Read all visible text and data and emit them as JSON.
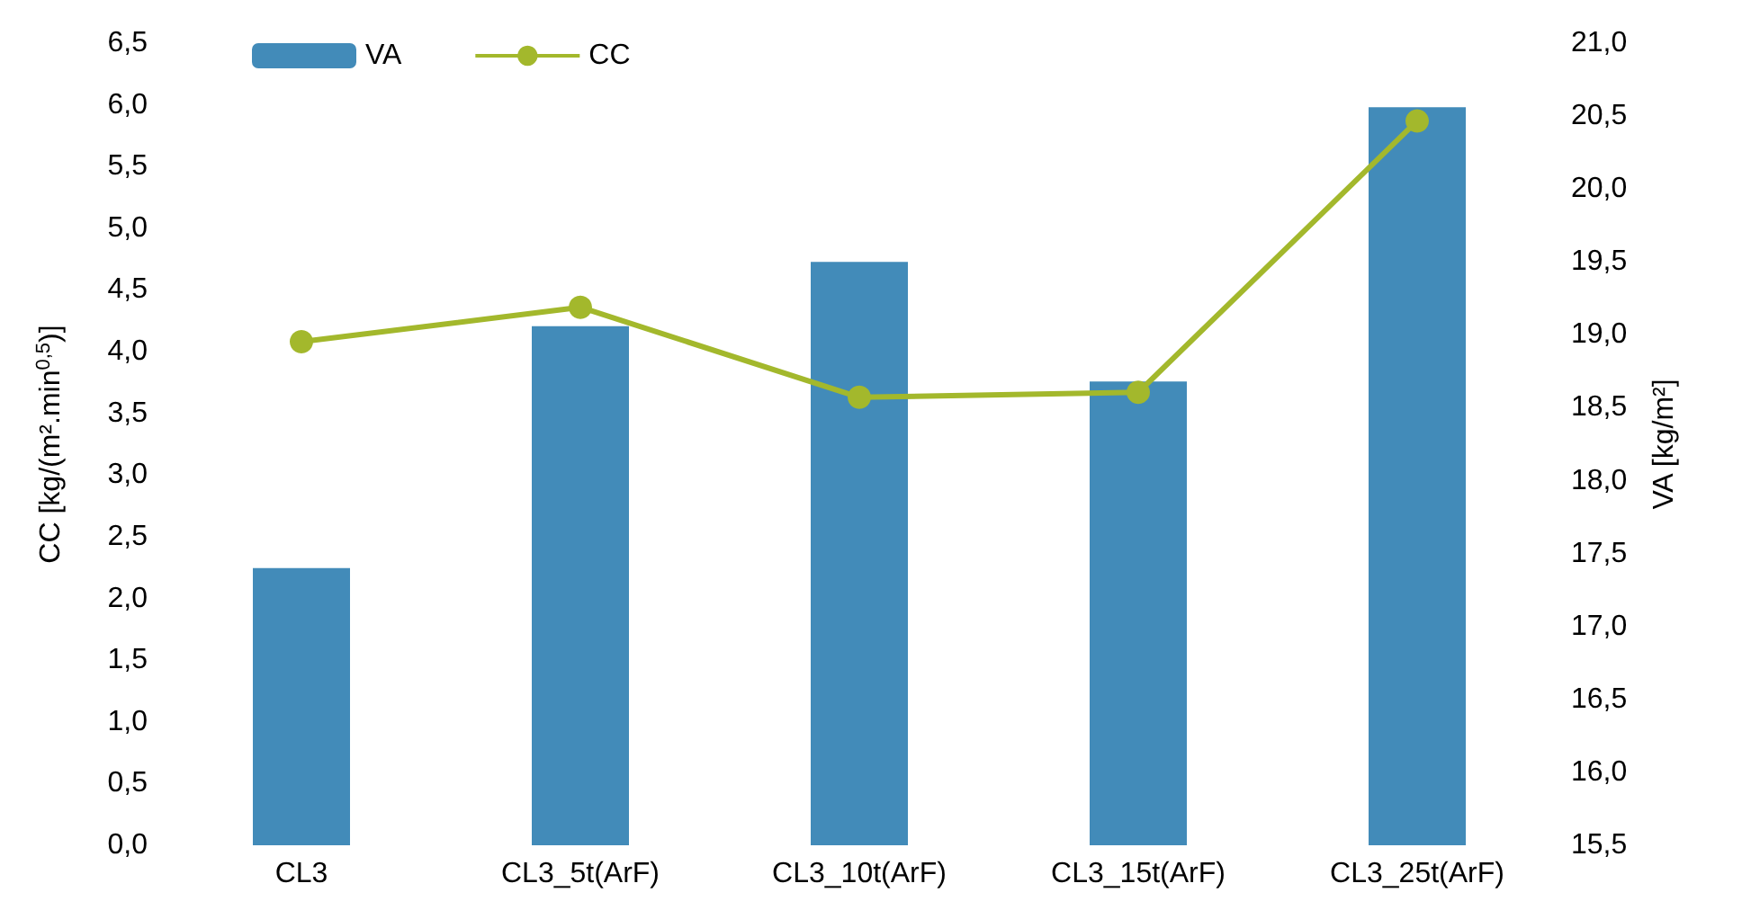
{
  "chart_data": {
    "type": "bar",
    "categories": [
      "CL3",
      "CL3_5t(ArF)",
      "CL3_10t(ArF)",
      "CL3_15t(ArF)",
      "CL3_25t(ArF)"
    ],
    "series": [
      {
        "name": "VA",
        "axis": "y2",
        "color": "#428bb9",
        "values": [
          17.4,
          19.06,
          19.5,
          18.68,
          20.56
        ]
      },
      {
        "name": "CC",
        "type": "line",
        "color": "#a3b82c",
        "values": [
          4.08,
          4.36,
          3.63,
          3.67,
          5.87
        ]
      }
    ],
    "ylabel": "CC [kg/(m².min$^{0,5}$)]",
    "y2label": "VA [kg/m²]",
    "ylim": [
      0,
      6.5
    ],
    "yticks": [
      {
        "value": 0,
        "label": "0,0"
      },
      {
        "value": 0.5,
        "label": "0,5"
      },
      {
        "value": 1,
        "label": "1,0"
      },
      {
        "value": 1.5,
        "label": "1,5"
      },
      {
        "value": 2,
        "label": "2,0"
      },
      {
        "value": 2.5,
        "label": "2,5"
      },
      {
        "value": 3,
        "label": "3,0"
      },
      {
        "value": 3.5,
        "label": "3,5"
      },
      {
        "value": 4,
        "label": "4,0"
      },
      {
        "value": 4.5,
        "label": "4,5"
      },
      {
        "value": 5,
        "label": "5,0"
      },
      {
        "value": 5.5,
        "label": "5,5"
      },
      {
        "value": 6,
        "label": "6,0"
      },
      {
        "value": 6.5,
        "label": "6,5"
      }
    ],
    "y2lim": [
      15.5,
      21
    ],
    "y2ticks": [
      {
        "value": 15.5,
        "label": "15,5"
      },
      {
        "value": 16,
        "label": "16,0"
      },
      {
        "value": 16.5,
        "label": "16,5"
      },
      {
        "value": 17,
        "label": "17,0"
      },
      {
        "value": 17.5,
        "label": "17,5"
      },
      {
        "value": 18,
        "label": "18,0"
      },
      {
        "value": 18.5,
        "label": "18,5"
      },
      {
        "value": 19,
        "label": "19,0"
      },
      {
        "value": 19.5,
        "label": "19,5"
      },
      {
        "value": 20,
        "label": "20,0"
      },
      {
        "value": 20.5,
        "label": "20,5"
      },
      {
        "value": 21,
        "label": "21,0"
      }
    ],
    "legend": "top left",
    "grid": false,
    "marker": "circle",
    "line_style": "solid"
  }
}
